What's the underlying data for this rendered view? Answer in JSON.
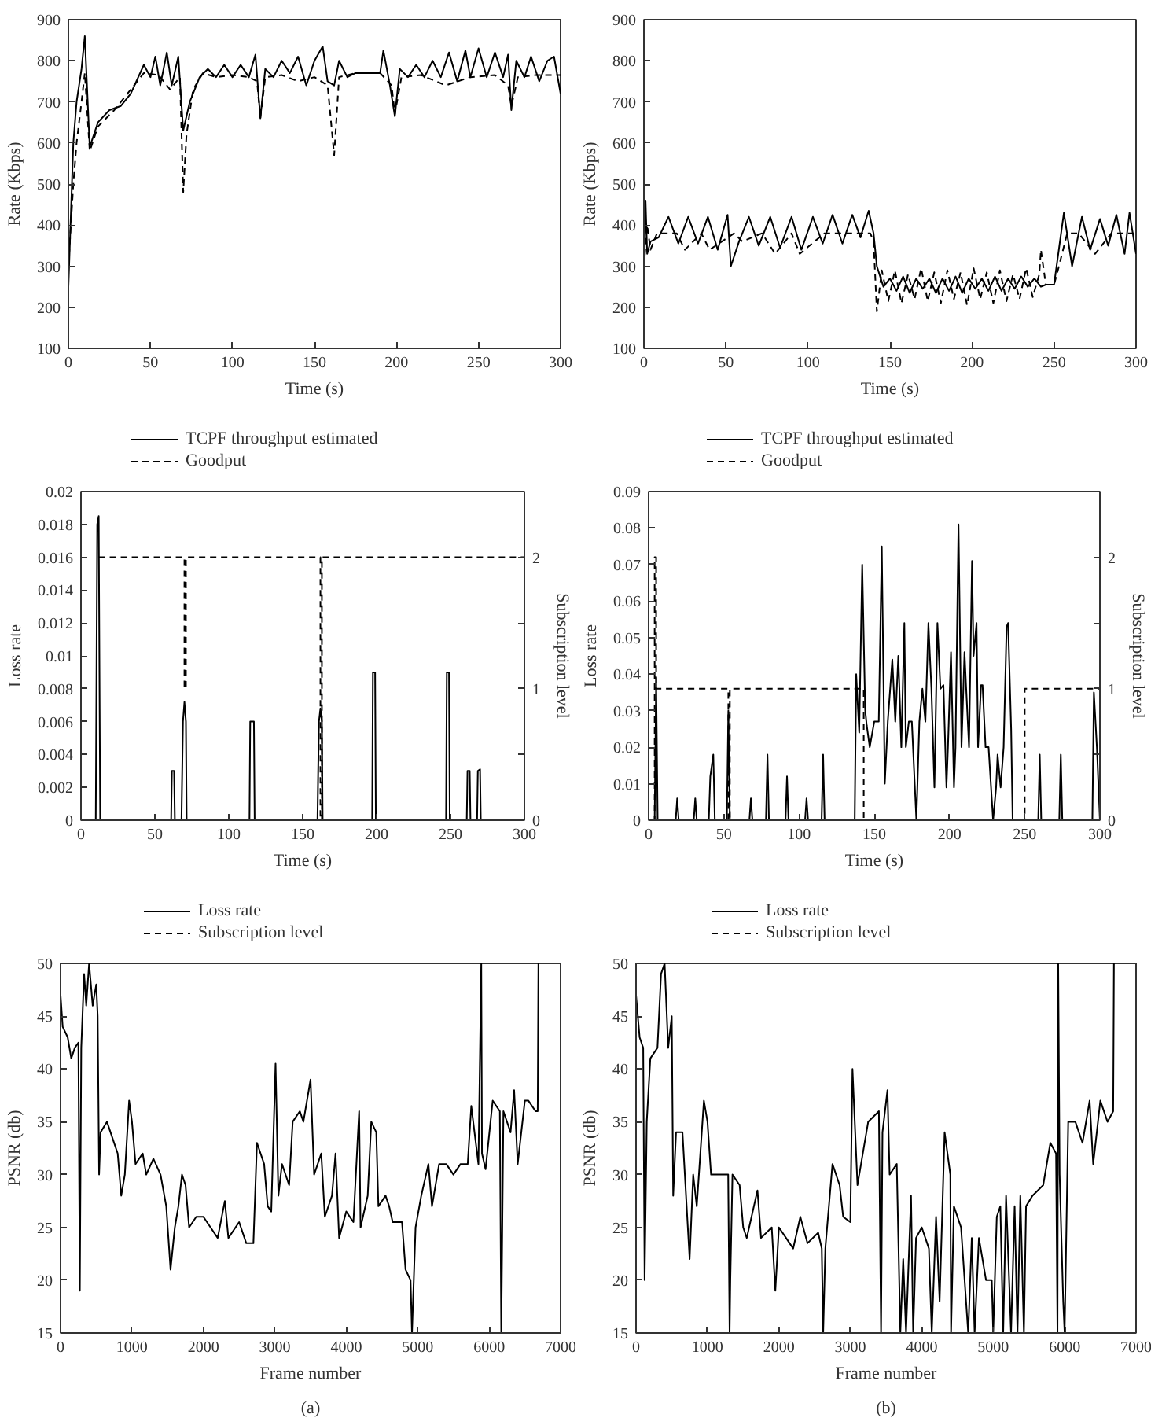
{
  "chart_data": [
    {
      "type": "line",
      "xlabel": "Time (s)",
      "ylabel": "Rate (Kbps)",
      "xlim": [
        0,
        300
      ],
      "ylim": [
        100,
        900
      ],
      "xticks": [
        0,
        50,
        100,
        150,
        200,
        250,
        300
      ],
      "yticks": [
        100,
        200,
        300,
        400,
        500,
        600,
        700,
        800,
        900
      ],
      "legend": "bottom",
      "series": [
        {
          "name": "TCPF throughput estimated",
          "color": "#000000",
          "line_style": "solid",
          "x": [
            0,
            3,
            5,
            8,
            10,
            13,
            18,
            25,
            32,
            38,
            46,
            50,
            53,
            56,
            60,
            63,
            67,
            70,
            74,
            80,
            85,
            90,
            95,
            100,
            105,
            110,
            114,
            117,
            120,
            125,
            130,
            135,
            140,
            145,
            150,
            155,
            158,
            162,
            165,
            170,
            175,
            180,
            185,
            190,
            192,
            196,
            199,
            202,
            207,
            212,
            217,
            222,
            227,
            232,
            237,
            242,
            245,
            250,
            255,
            260,
            265,
            268,
            270,
            273,
            278,
            282,
            287,
            292,
            296,
            300
          ],
          "values": [
            250,
            600,
            700,
            780,
            860,
            590,
            650,
            680,
            690,
            720,
            790,
            760,
            810,
            740,
            820,
            740,
            810,
            630,
            700,
            760,
            780,
            760,
            790,
            760,
            790,
            760,
            815,
            660,
            780,
            760,
            800,
            770,
            810,
            740,
            800,
            835,
            750,
            740,
            800,
            760,
            770,
            770,
            770,
            770,
            825,
            740,
            665,
            780,
            760,
            790,
            760,
            800,
            760,
            820,
            750,
            825,
            760,
            830,
            760,
            820,
            760,
            815,
            680,
            800,
            760,
            810,
            750,
            800,
            810,
            720
          ]
        },
        {
          "name": "Goodput",
          "color": "#000000",
          "line_style": "dashed",
          "x": [
            0,
            3,
            5,
            8,
            10,
            13,
            18,
            28,
            40,
            46,
            55,
            62,
            68,
            70,
            72,
            76,
            82,
            90,
            100,
            110,
            115,
            117,
            120,
            130,
            140,
            150,
            158,
            162,
            165,
            175,
            190,
            197,
            199,
            203,
            215,
            230,
            245,
            260,
            268,
            270,
            274,
            285,
            300
          ],
          "values": [
            300,
            500,
            600,
            700,
            770,
            580,
            640,
            680,
            740,
            770,
            765,
            730,
            760,
            480,
            620,
            730,
            770,
            760,
            765,
            760,
            750,
            660,
            760,
            765,
            750,
            760,
            740,
            570,
            760,
            770,
            770,
            740,
            670,
            760,
            765,
            740,
            760,
            765,
            740,
            690,
            760,
            765,
            765
          ]
        }
      ]
    },
    {
      "type": "line",
      "xlabel": "Time (s)",
      "ylabel": "Rate (Kbps)",
      "xlim": [
        0,
        300
      ],
      "ylim": [
        100,
        900
      ],
      "xticks": [
        0,
        50,
        100,
        150,
        200,
        250,
        300
      ],
      "yticks": [
        100,
        200,
        300,
        400,
        500,
        600,
        700,
        800,
        900
      ],
      "legend": "bottom",
      "series": [
        {
          "name": "TCPF throughput estimated",
          "color": "#000000",
          "line_style": "solid",
          "x": [
            0,
            1,
            2,
            4,
            9,
            15,
            21,
            27,
            33,
            39,
            45,
            51,
            53,
            58,
            64,
            70,
            77,
            83,
            90,
            96,
            103,
            109,
            115,
            121,
            127,
            132,
            137,
            140,
            142,
            146,
            150,
            154,
            158,
            162,
            166,
            170,
            174,
            178,
            182,
            186,
            190,
            194,
            198,
            202,
            206,
            210,
            214,
            218,
            222,
            226,
            230,
            234,
            238,
            242,
            245,
            250,
            256,
            261,
            267,
            272,
            278,
            283,
            288,
            293,
            296,
            300
          ],
          "values": [
            260,
            460,
            330,
            360,
            370,
            420,
            355,
            420,
            355,
            420,
            340,
            425,
            300,
            360,
            420,
            350,
            420,
            345,
            420,
            340,
            420,
            355,
            425,
            355,
            425,
            370,
            435,
            380,
            300,
            250,
            270,
            240,
            275,
            235,
            270,
            245,
            270,
            235,
            270,
            240,
            275,
            235,
            270,
            245,
            270,
            240,
            275,
            240,
            270,
            245,
            275,
            250,
            270,
            250,
            255,
            255,
            430,
            300,
            420,
            340,
            415,
            350,
            425,
            330,
            430,
            330
          ]
        },
        {
          "name": "Goodput",
          "color": "#000000",
          "line_style": "dashed",
          "x": [
            0,
            2,
            4,
            8,
            20,
            25,
            35,
            40,
            55,
            60,
            72,
            80,
            90,
            95,
            110,
            120,
            130,
            138,
            140,
            142,
            145,
            149,
            153,
            157,
            161,
            165,
            169,
            173,
            177,
            181,
            185,
            189,
            193,
            197,
            201,
            205,
            209,
            213,
            217,
            221,
            225,
            229,
            233,
            237,
            241,
            242,
            245,
            250,
            253,
            258,
            265,
            275,
            285,
            300
          ],
          "values": [
            300,
            400,
            340,
            380,
            380,
            340,
            380,
            340,
            380,
            360,
            380,
            330,
            380,
            330,
            380,
            380,
            380,
            380,
            360,
            190,
            290,
            215,
            290,
            210,
            280,
            220,
            295,
            215,
            285,
            210,
            290,
            220,
            285,
            205,
            295,
            220,
            285,
            210,
            290,
            215,
            280,
            220,
            295,
            225,
            280,
            340,
            255,
            255,
            300,
            380,
            380,
            330,
            380,
            380
          ]
        }
      ]
    },
    {
      "type": "line",
      "xlabel": "Time (s)",
      "ylabel": "Loss rate",
      "y2label": "Subscription level",
      "xlim": [
        0,
        300
      ],
      "ylim": [
        0,
        0.02
      ],
      "xticks": [
        0,
        50,
        100,
        150,
        200,
        250,
        300
      ],
      "yticks": [
        0,
        0.002,
        0.004,
        0.006,
        0.008,
        0.01,
        0.012,
        0.014,
        0.016,
        0.018,
        0.02
      ],
      "y2lim": [
        0,
        2.5
      ],
      "y2ticks": [
        0,
        {
          "value": 0.5,
          "label": null
        },
        1,
        {
          "value": 1.5,
          "label": null
        },
        2,
        {
          "value": 2.5,
          "label": null
        }
      ],
      "legend": "bottom",
      "series": [
        {
          "name": "Loss rate",
          "color": "#000000",
          "line_style": "solid",
          "x": [
            0,
            10,
            11,
            12,
            13,
            61,
            61.5,
            63,
            63.5,
            68,
            69,
            70,
            71,
            71.5,
            114,
            114.5,
            117,
            117.5,
            160,
            161,
            162,
            163,
            163.5,
            197,
            197.5,
            199,
            199.5,
            247,
            247.5,
            249,
            249.5,
            261,
            261.5,
            263,
            263.5,
            268,
            268.5,
            270,
            270.5,
            300
          ],
          "values": [
            0,
            0,
            0.018,
            0.0185,
            0,
            0,
            0.003,
            0.003,
            0,
            0,
            0.006,
            0.0072,
            0.006,
            0,
            0,
            0.006,
            0.006,
            0,
            0,
            0.006,
            0.0068,
            0.006,
            0,
            0,
            0.009,
            0.009,
            0,
            0,
            0.009,
            0.009,
            0,
            0,
            0.003,
            0.003,
            0,
            0,
            0.003,
            0.0031,
            0,
            0
          ]
        },
        {
          "name": "Subscription level",
          "color": "#000000",
          "line_style": "dashed",
          "axis": "y2",
          "x": [
            12,
            70,
            70,
            71,
            71,
            162,
            162,
            163,
            163,
            300
          ],
          "values": [
            2,
            2,
            1,
            1,
            2,
            2,
            0,
            0,
            2,
            2
          ]
        }
      ]
    },
    {
      "type": "line",
      "xlabel": "Time (s)",
      "ylabel": "Loss rate",
      "y2label": "Subscription level",
      "xlim": [
        0,
        300
      ],
      "ylim": [
        0,
        0.09
      ],
      "xticks": [
        0,
        50,
        100,
        150,
        200,
        250,
        300
      ],
      "yticks": [
        0,
        0.01,
        0.02,
        0.03,
        0.04,
        0.05,
        0.06,
        0.07,
        0.08,
        0.09
      ],
      "y2lim": [
        0,
        2.5
      ],
      "y2ticks": [
        0,
        {
          "value": 0.5,
          "label": null
        },
        1,
        {
          "value": 1.5,
          "label": null
        },
        2,
        {
          "value": 2.5,
          "label": null
        }
      ],
      "legend": "bottom",
      "series": [
        {
          "name": "Loss rate",
          "color": "#000000",
          "line_style": "solid",
          "x": [
            0,
            4,
            5,
            6,
            18,
            19,
            20,
            30,
            31,
            32,
            40,
            41,
            43,
            44,
            52,
            53,
            54,
            67,
            68,
            69,
            78,
            79,
            80,
            91,
            92,
            93,
            104,
            105,
            106,
            115,
            116,
            117,
            137,
            138,
            140,
            142,
            144,
            145,
            147,
            150,
            153,
            155,
            157,
            159,
            162,
            164,
            166,
            168,
            170,
            171,
            173,
            175,
            178,
            180,
            182,
            184,
            186,
            188,
            190,
            192,
            194,
            196,
            198,
            199,
            201,
            203,
            204,
            206,
            208,
            210,
            211,
            213,
            215,
            216,
            218,
            219,
            221,
            222,
            224,
            226,
            229,
            231,
            232,
            234,
            236,
            238,
            239,
            241,
            242,
            244,
            259,
            260,
            261,
            273,
            274,
            275,
            295,
            296,
            298,
            300
          ],
          "values": [
            0,
            0,
            0.039,
            0,
            0,
            0.006,
            0,
            0,
            0.006,
            0,
            0,
            0.012,
            0.018,
            0,
            0,
            0.03,
            0,
            0,
            0.006,
            0,
            0,
            0.018,
            0,
            0,
            0.012,
            0,
            0,
            0.006,
            0,
            0,
            0.018,
            0,
            0,
            0.04,
            0.024,
            0.07,
            0.03,
            0.026,
            0.02,
            0.027,
            0.027,
            0.075,
            0.01,
            0.027,
            0.044,
            0.027,
            0.045,
            0.02,
            0.054,
            0.02,
            0.027,
            0.027,
            0,
            0.027,
            0.036,
            0.027,
            0.054,
            0.036,
            0.009,
            0.054,
            0.036,
            0.037,
            0.009,
            0.02,
            0.046,
            0.009,
            0.02,
            0.081,
            0.02,
            0.046,
            0.037,
            0.02,
            0.071,
            0.045,
            0.054,
            0.02,
            0.037,
            0.037,
            0.02,
            0.02,
            0,
            0.009,
            0.018,
            0.009,
            0.02,
            0.053,
            0.054,
            0.025,
            0,
            0,
            0,
            0.018,
            0,
            0,
            0.018,
            0,
            0,
            0.035,
            0.02,
            0
          ]
        },
        {
          "name": "Subscription level",
          "color": "#000000",
          "line_style": "dashed",
          "axis": "y2",
          "x": [
            3,
            4,
            4,
            5,
            5,
            53,
            53,
            54,
            54,
            143,
            143,
            250,
            250,
            300
          ],
          "values": [
            0,
            0,
            2,
            2,
            1,
            1,
            0,
            0,
            1,
            1,
            0,
            0,
            1,
            1
          ]
        }
      ]
    },
    {
      "type": "line",
      "xlabel": "Frame number",
      "ylabel": "PSNR (db)",
      "xlim": [
        0,
        7000
      ],
      "ylim": [
        15,
        50
      ],
      "xticks": [
        0,
        1000,
        2000,
        3000,
        4000,
        5000,
        6000,
        7000
      ],
      "yticks": [
        15,
        20,
        25,
        30,
        35,
        40,
        45,
        50
      ],
      "annotations": [
        "(a)"
      ],
      "series": [
        {
          "color": "#000000",
          "line_style": "solid",
          "x": [
            0,
            30,
            100,
            150,
            200,
            250,
            270,
            290,
            330,
            360,
            400,
            450,
            500,
            520,
            540,
            560,
            650,
            700,
            800,
            850,
            900,
            960,
            1000,
            1050,
            1150,
            1200,
            1300,
            1400,
            1480,
            1540,
            1600,
            1650,
            1700,
            1750,
            1800,
            1900,
            2000,
            2100,
            2200,
            2300,
            2350,
            2500,
            2600,
            2700,
            2750,
            2850,
            2900,
            2950,
            3010,
            3050,
            3100,
            3200,
            3250,
            3350,
            3400,
            3500,
            3550,
            3650,
            3700,
            3800,
            3850,
            3900,
            4000,
            4100,
            4180,
            4200,
            4300,
            4350,
            4420,
            4450,
            4550,
            4600,
            4650,
            4780,
            4830,
            4900,
            4920,
            4970,
            5050,
            5150,
            5200,
            5300,
            5400,
            5500,
            5600,
            5700,
            5750,
            5850,
            5890,
            5900,
            5950,
            6050,
            6150,
            6170,
            6200,
            6300,
            6350,
            6400,
            6450,
            6500,
            6550,
            6650,
            6680,
            6690
          ],
          "values": [
            47,
            44,
            43,
            41,
            42,
            42.5,
            19,
            42,
            49,
            46,
            50,
            46,
            48,
            45,
            30,
            34,
            35,
            34,
            32,
            28,
            30,
            37,
            35,
            31,
            32,
            30,
            31.5,
            30,
            27,
            21,
            25,
            27,
            30,
            29,
            25,
            26,
            26,
            25,
            24,
            27.5,
            24,
            25.5,
            23.5,
            23.5,
            33,
            31,
            27,
            26.5,
            40.5,
            28,
            31,
            29,
            35,
            36,
            35,
            39,
            30,
            32,
            26,
            28,
            32,
            24,
            26.5,
            25.5,
            36,
            25,
            28,
            35,
            34,
            27,
            28,
            27,
            25.5,
            25.5,
            21,
            20,
            15,
            25,
            28,
            31,
            27,
            31,
            31,
            30,
            31,
            31,
            36.5,
            31,
            50,
            32,
            30.5,
            37,
            36,
            15,
            36,
            34,
            38,
            31,
            34,
            37,
            37,
            36,
            36,
            50
          ]
        }
      ]
    },
    {
      "type": "line",
      "xlabel": "Frame number",
      "ylabel": "PSNR (db)",
      "xlim": [
        0,
        7000
      ],
      "ylim": [
        15,
        50
      ],
      "xticks": [
        0,
        1000,
        2000,
        3000,
        4000,
        5000,
        6000,
        7000
      ],
      "yticks": [
        15,
        20,
        25,
        30,
        35,
        40,
        45,
        50
      ],
      "annotations": [
        "(b)"
      ],
      "series": [
        {
          "color": "#000000",
          "line_style": "solid",
          "x": [
            0,
            50,
            100,
            120,
            150,
            200,
            300,
            350,
            400,
            450,
            500,
            520,
            560,
            650,
            750,
            800,
            850,
            950,
            1000,
            1050,
            1200,
            1290,
            1310,
            1320,
            1350,
            1450,
            1500,
            1550,
            1700,
            1750,
            1900,
            1950,
            2000,
            2100,
            2200,
            2300,
            2400,
            2550,
            2600,
            2620,
            2650,
            2750,
            2850,
            2900,
            3000,
            3030,
            3100,
            3150,
            3250,
            3400,
            3430,
            3450,
            3520,
            3550,
            3650,
            3700,
            3740,
            3780,
            3850,
            3880,
            3920,
            4000,
            4100,
            4140,
            4200,
            4250,
            4320,
            4400,
            4410,
            4450,
            4550,
            4650,
            4700,
            4740,
            4800,
            4900,
            4980,
            5000,
            5050,
            5100,
            5140,
            5180,
            5250,
            5300,
            5340,
            5380,
            5430,
            5460,
            5550,
            5700,
            5800,
            5880,
            5900,
            5910,
            5930,
            5980,
            6000,
            6050,
            6150,
            6250,
            6350,
            6400,
            6500,
            6600,
            6680,
            6690
          ],
          "values": [
            47,
            43,
            42,
            20,
            35,
            41,
            42,
            49,
            50,
            42,
            45,
            28,
            34,
            34,
            22,
            30,
            27,
            37,
            35,
            30,
            30,
            30,
            15,
            20,
            30,
            29,
            25,
            24,
            28.5,
            24,
            25,
            19,
            25,
            24,
            23,
            26,
            23.5,
            24.5,
            23,
            15,
            23,
            31,
            29,
            26,
            25.5,
            40,
            29,
            31,
            35,
            36,
            15,
            34,
            38,
            30,
            31,
            15,
            22,
            15,
            28,
            15,
            24,
            25,
            23,
            15,
            26,
            18,
            34,
            30,
            15,
            27,
            25,
            15,
            24,
            15,
            24,
            20,
            20,
            15,
            26,
            27,
            15,
            28,
            15,
            27,
            15,
            28,
            15,
            27,
            28,
            29,
            33,
            32,
            15,
            50,
            30,
            18,
            15,
            35,
            35,
            33,
            37,
            31,
            37,
            35,
            36,
            50
          ]
        }
      ]
    }
  ]
}
